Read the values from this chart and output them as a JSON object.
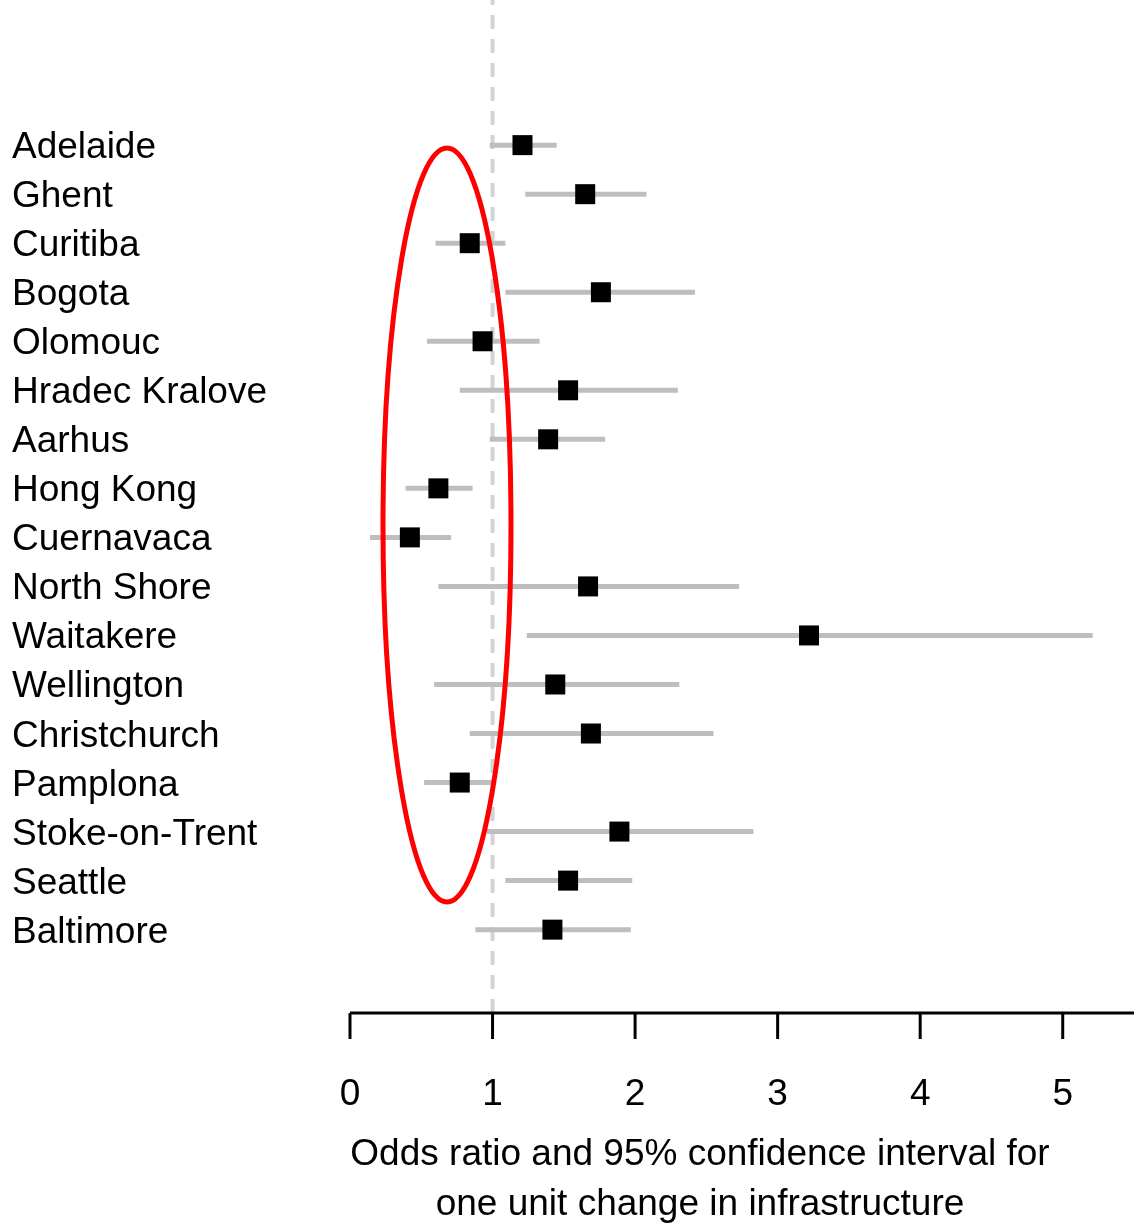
{
  "chart_data": {
    "type": "scatter",
    "orientation": "horizontal",
    "xlabel": "Odds ratio and 95% confidence interval for\none unit change in infrastructure",
    "categories": [
      "Adelaide",
      "Ghent",
      "Curitiba",
      "Bogota",
      "Olomouc",
      "Hradec Kralove",
      "Aarhus",
      "Hong Kong",
      "Cuernavaca",
      "North Shore",
      "Waitakere",
      "Wellington",
      "Christchurch",
      "Pamplona",
      "Stoke-on-Trent",
      "Seattle",
      "Baltimore"
    ],
    "values": [
      1.21,
      1.65,
      0.84,
      1.76,
      0.93,
      1.53,
      1.39,
      0.62,
      0.42,
      1.67,
      3.22,
      1.44,
      1.69,
      0.77,
      1.89,
      1.53,
      1.42
    ],
    "errors": [
      [
        0.98,
        1.45
      ],
      [
        1.23,
        2.08
      ],
      [
        0.6,
        1.09
      ],
      [
        1.09,
        2.42
      ],
      [
        0.54,
        1.33
      ],
      [
        0.77,
        2.3
      ],
      [
        0.98,
        1.79
      ],
      [
        0.39,
        0.86
      ],
      [
        0.14,
        0.71
      ],
      [
        0.62,
        2.73
      ],
      [
        1.24,
        5.21
      ],
      [
        0.59,
        2.31
      ],
      [
        0.84,
        2.55
      ],
      [
        0.52,
        1.01
      ],
      [
        0.96,
        2.83
      ],
      [
        1.09,
        1.98
      ],
      [
        0.88,
        1.97
      ]
    ],
    "color": "#000000",
    "marker": "square",
    "xlim": [
      0,
      5.5
    ],
    "xticks": [
      0,
      1,
      2,
      3,
      4,
      5
    ],
    "ref_lines": [
      {
        "axis": "x",
        "value": 1,
        "color": "#d3d3d3",
        "line_style": "dashed"
      }
    ],
    "grid": false,
    "legend": false
  }
}
